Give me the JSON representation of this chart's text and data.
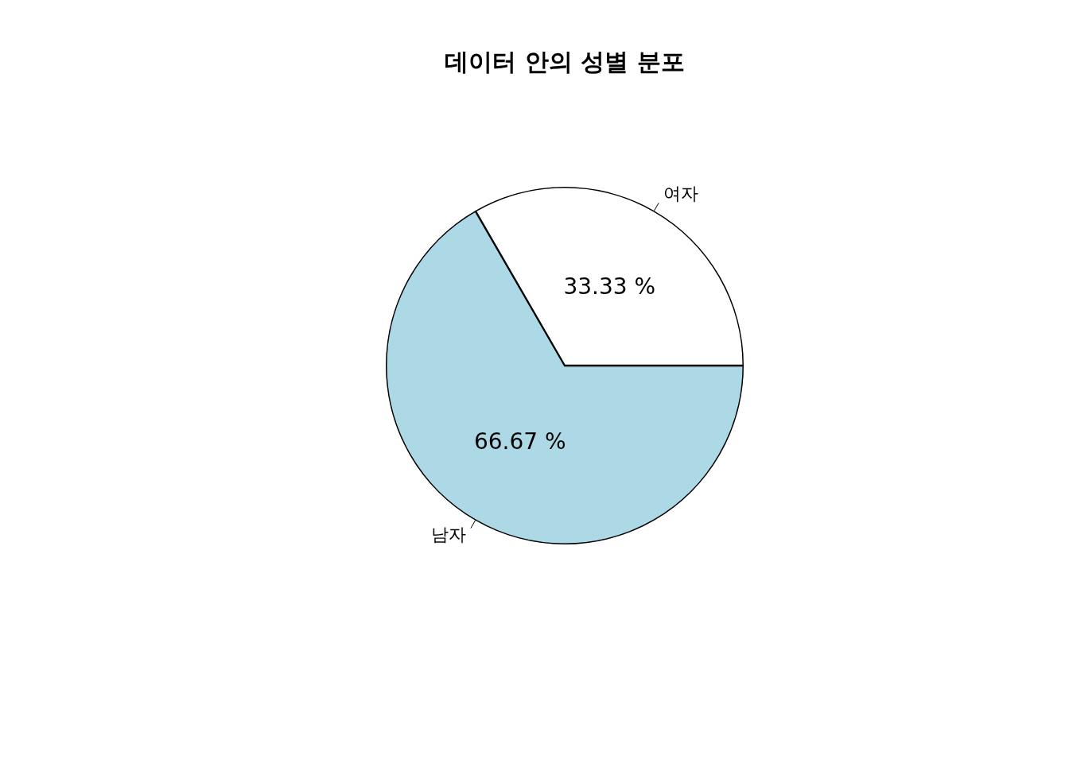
{
  "chart_data": {
    "type": "pie",
    "title": "데이터 안의 성별 분포",
    "categories": [
      "여자",
      "남자"
    ],
    "values": [
      33.33,
      66.67
    ],
    "colors": [
      "#ffffff",
      "#add8e6"
    ],
    "value_labels": [
      "33.33 %",
      "66.67 %"
    ],
    "legend": false
  }
}
